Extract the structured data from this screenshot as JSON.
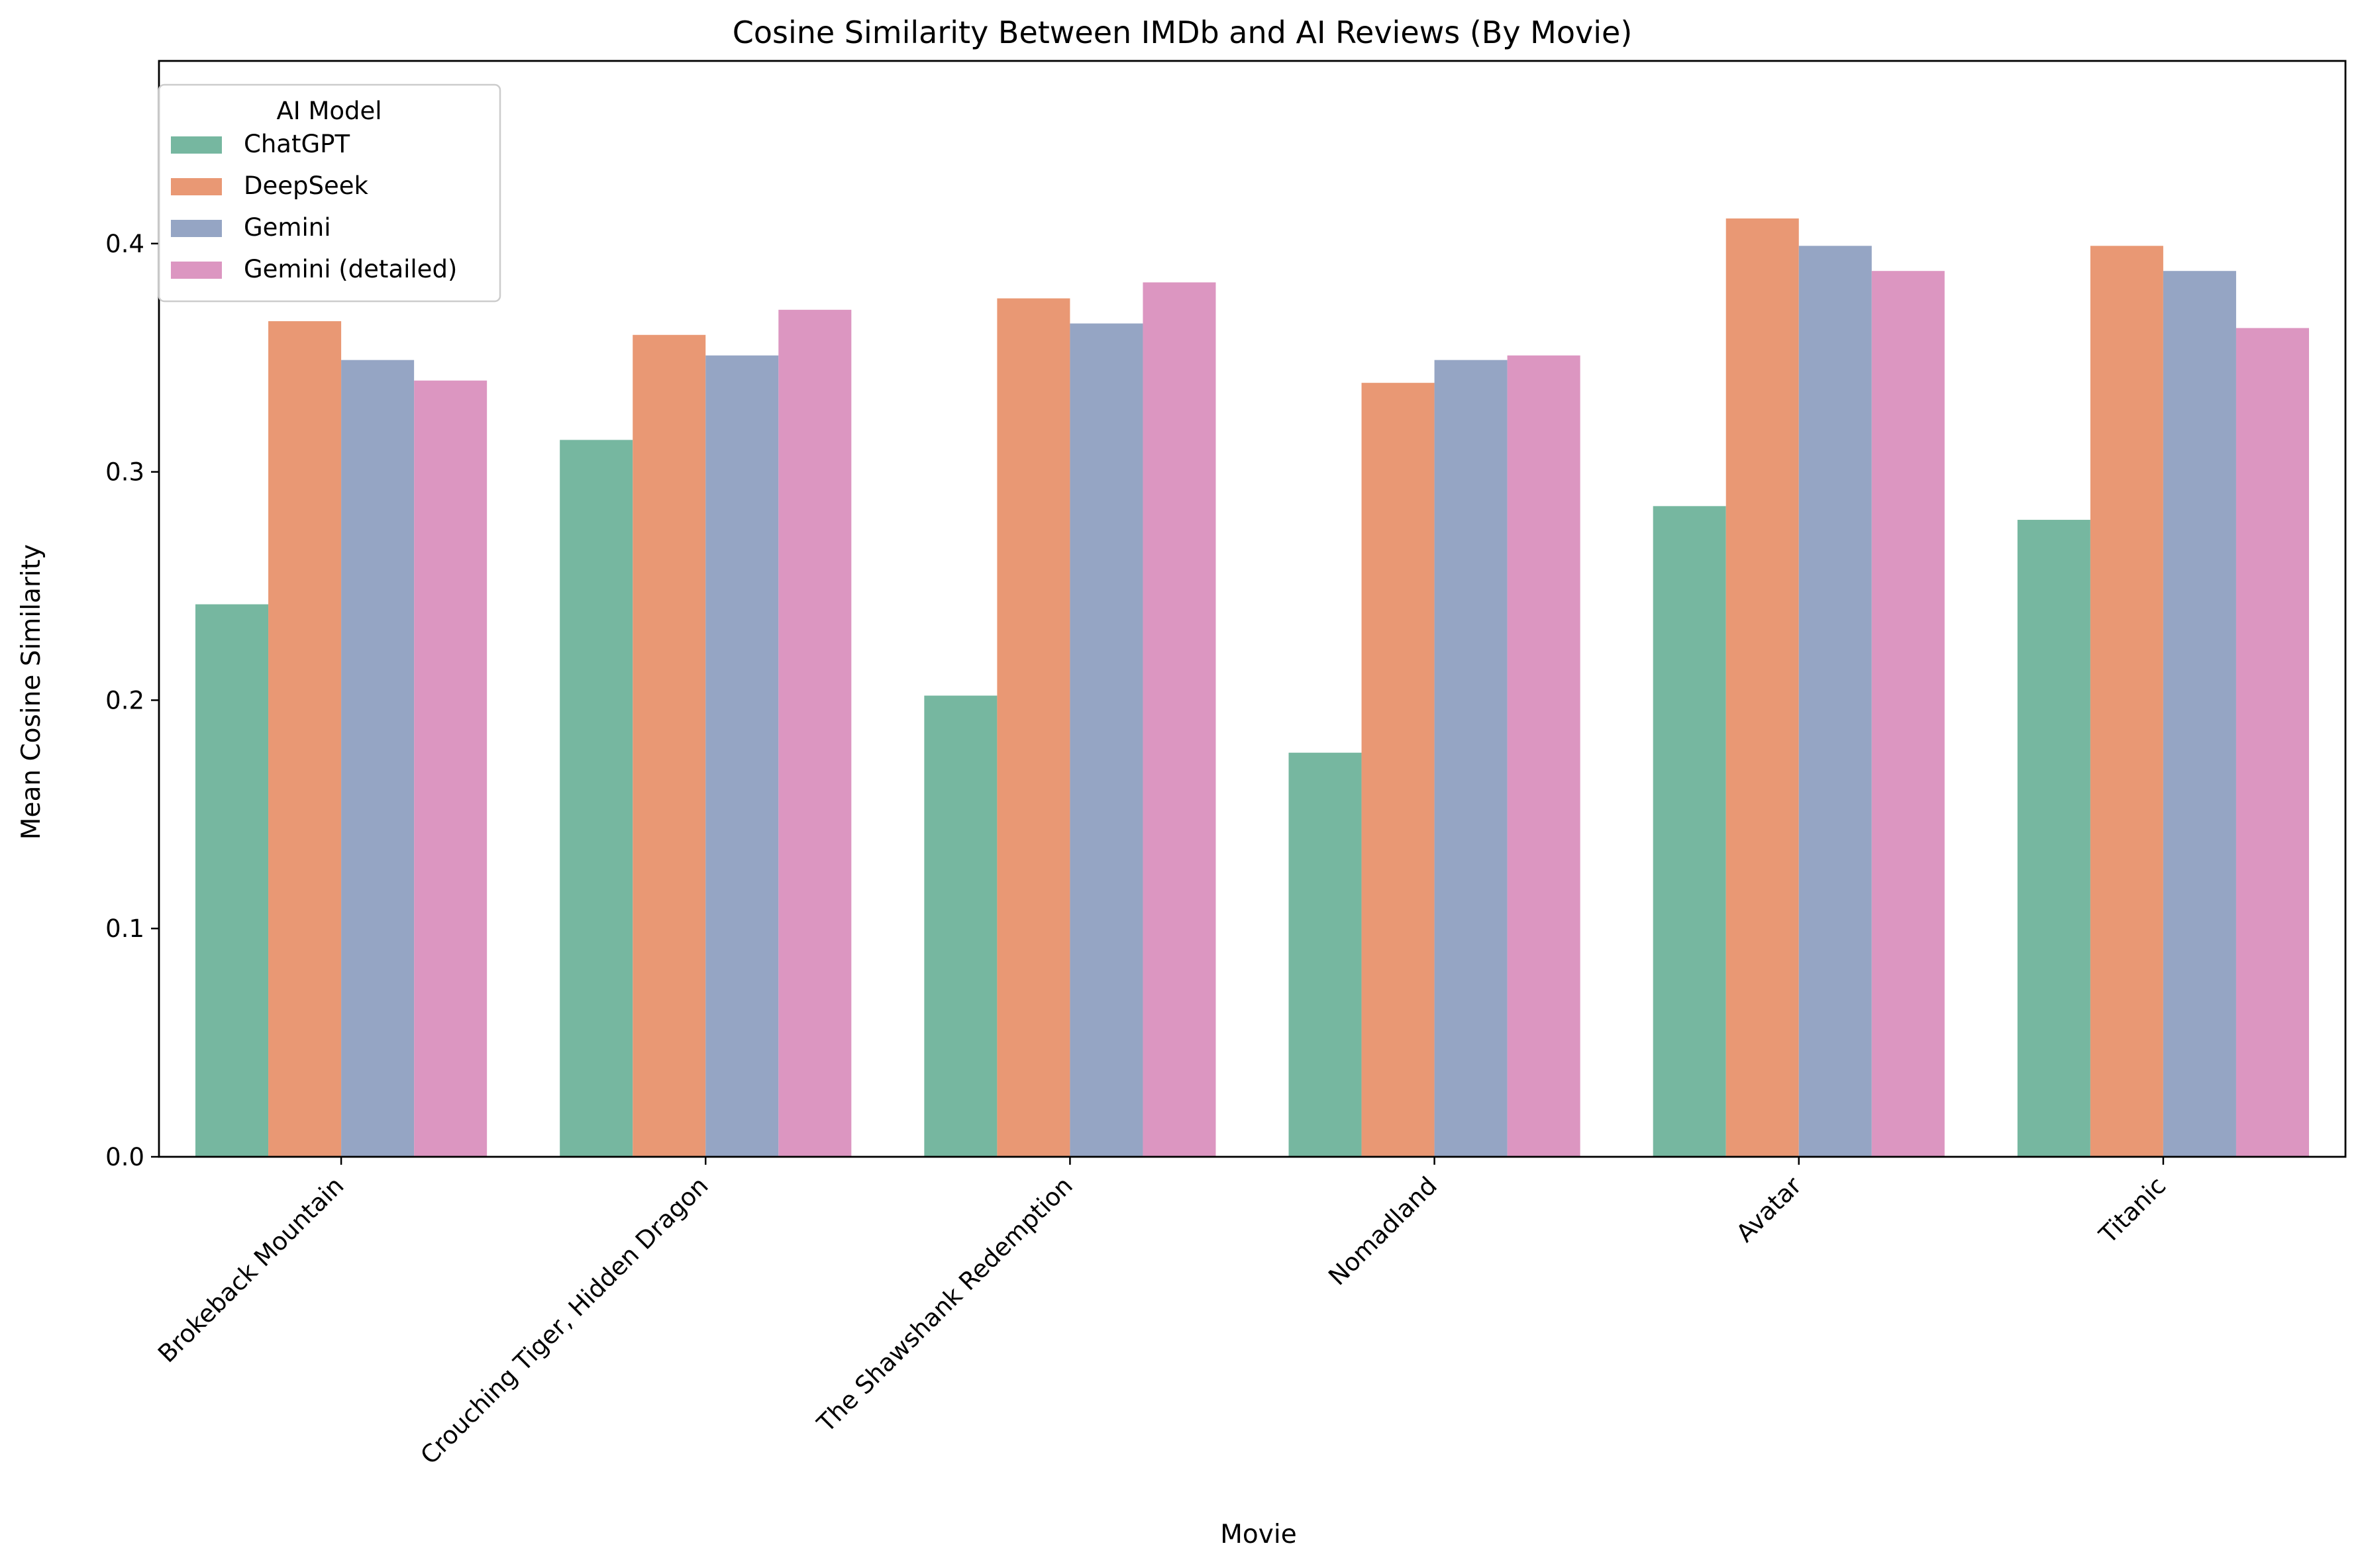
{
  "chart_data": {
    "type": "bar",
    "title": "Cosine Similarity Between IMDb and AI Reviews (By Movie)",
    "xlabel": "Movie",
    "ylabel": "Mean Cosine Similarity",
    "ylim": [
      0,
      0.48
    ],
    "yticks": [
      "0.0",
      "0.1",
      "0.2",
      "0.3",
      "0.4"
    ],
    "grid": false,
    "legend": {
      "title": "AI Model",
      "placement": "top-left"
    },
    "categories": [
      "Brokeback Mountain",
      "Crouching Tiger, Hidden Dragon",
      "The Shawshank Redemption",
      "Nomadland",
      "Avatar",
      "Titanic"
    ],
    "series": [
      {
        "name": "ChatGPT",
        "color": "#76b7a0",
        "values": [
          0.242,
          0.314,
          0.202,
          0.177,
          0.285,
          0.279
        ]
      },
      {
        "name": "DeepSeek",
        "color": "#e99874",
        "values": [
          0.366,
          0.36,
          0.376,
          0.339,
          0.411,
          0.399
        ]
      },
      {
        "name": "Gemini",
        "color": "#95a5c4",
        "values": [
          0.349,
          0.351,
          0.365,
          0.349,
          0.399,
          0.388
        ]
      },
      {
        "name": "Gemini (detailed)",
        "color": "#dc96c1",
        "values": [
          0.34,
          0.371,
          0.383,
          0.351,
          0.388,
          0.363
        ]
      }
    ]
  }
}
